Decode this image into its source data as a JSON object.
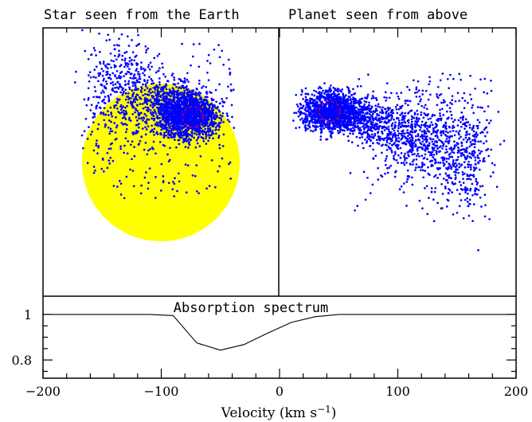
{
  "chart_data": [
    {
      "type": "scatter",
      "title": "Star seen from the Earth",
      "star": {
        "fill": "#ffff00",
        "shape": "circle"
      },
      "planet_marker": {
        "shape": "dashed-circle",
        "color": "#ff0000"
      },
      "particles": {
        "color": "#0000ff",
        "shape": "dots",
        "description_hint": "dense cloud streaming from planet toward upper-left"
      }
    },
    {
      "type": "scatter",
      "title": "Planet seen from above",
      "planet_marker": {
        "shape": "dashed-circle",
        "color": "#ff0000"
      },
      "particles": {
        "color": "#0000ff",
        "shape": "dots",
        "description_hint": "dense cloud at planet, tail spreading to lower-right"
      }
    },
    {
      "type": "line",
      "title": "Absorption spectrum",
      "xlabel": "Velocity (km s",
      "xlabel_sup": "−1",
      "xlabel_close": ")",
      "xlim": [
        -200,
        200
      ],
      "ylim": [
        0.72,
        1.08
      ],
      "xticks": [
        {
          "value": -200,
          "label": "−200"
        },
        {
          "value": -100,
          "label": "−100"
        },
        {
          "value": 0,
          "label": "0"
        },
        {
          "value": 100,
          "label": "100"
        },
        {
          "value": 200,
          "label": "200"
        }
      ],
      "yticks": [
        {
          "value": 1,
          "label": "1"
        },
        {
          "value": 0.8,
          "label": "0.8"
        }
      ],
      "x": [
        -200,
        -110,
        -90,
        -70,
        -50,
        -30,
        -10,
        10,
        30,
        50,
        200
      ],
      "y": [
        1.0,
        1.0,
        0.995,
        0.875,
        0.843,
        0.868,
        0.918,
        0.965,
        0.99,
        1.0,
        1.0
      ]
    }
  ]
}
